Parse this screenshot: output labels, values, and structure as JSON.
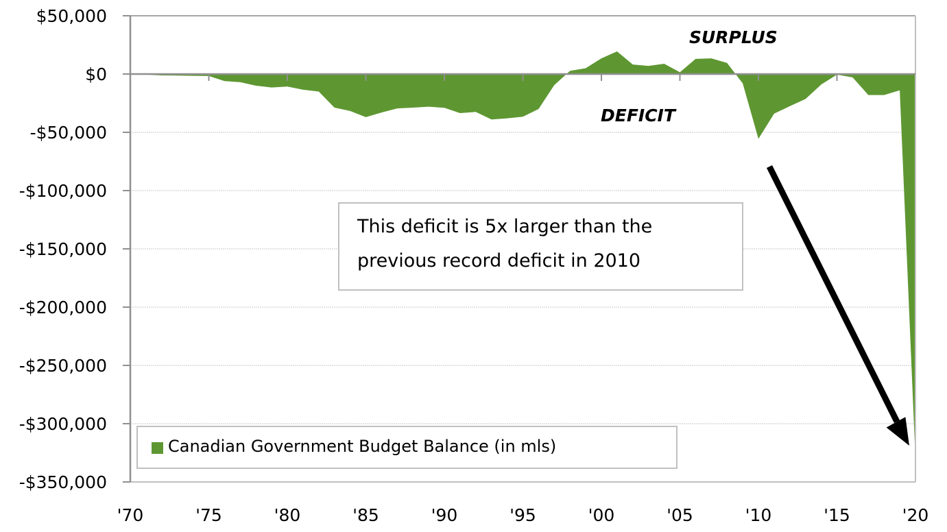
{
  "chart_data": {
    "type": "area",
    "title": "",
    "xlabel": "",
    "ylabel": "",
    "x": [
      1970,
      1971,
      1972,
      1973,
      1974,
      1975,
      1976,
      1977,
      1978,
      1979,
      1980,
      1981,
      1982,
      1983,
      1984,
      1985,
      1986,
      1987,
      1988,
      1989,
      1990,
      1991,
      1992,
      1993,
      1994,
      1995,
      1996,
      1997,
      1998,
      1999,
      2000,
      2001,
      2002,
      2003,
      2004,
      2005,
      2006,
      2007,
      2008,
      2009,
      2010,
      2011,
      2012,
      2013,
      2014,
      2015,
      2016,
      2017,
      2018,
      2019,
      2020
    ],
    "series": [
      {
        "name": "Canadian Government Budget Balance (in mls)",
        "color": "#5e9732",
        "values": [
          0,
          -500,
          -1200,
          -1300,
          -1500,
          -1700,
          -6000,
          -7000,
          -10000,
          -11500,
          -10700,
          -13500,
          -15000,
          -28800,
          -31700,
          -37000,
          -33000,
          -29500,
          -28800,
          -28000,
          -29000,
          -33500,
          -32500,
          -39000,
          -38000,
          -36600,
          -30000,
          -9500,
          2700,
          5000,
          13500,
          19400,
          8200,
          7000,
          8800,
          1500,
          13000,
          13500,
          9600,
          -8000,
          -55600,
          -34000,
          -27600,
          -21400,
          -9000,
          -500,
          -2900,
          -18000,
          -18000,
          -14000,
          -330600
        ]
      }
    ],
    "x_ticks": [
      {
        "value": 1970,
        "label": "'70"
      },
      {
        "value": 1975,
        "label": "'75"
      },
      {
        "value": 1980,
        "label": "'80"
      },
      {
        "value": 1985,
        "label": "'85"
      },
      {
        "value": 1990,
        "label": "'90"
      },
      {
        "value": 1995,
        "label": "'95"
      },
      {
        "value": 2000,
        "label": "'00"
      },
      {
        "value": 2005,
        "label": "'05"
      },
      {
        "value": 2010,
        "label": "'10"
      },
      {
        "value": 2015,
        "label": "'15"
      },
      {
        "value": 2020,
        "label": "'20"
      }
    ],
    "y_ticks": [
      {
        "value": 50000,
        "label": "$50,000"
      },
      {
        "value": 0,
        "label": "$0"
      },
      {
        "value": -50000,
        "label": "-$50,000"
      },
      {
        "value": -100000,
        "label": "-$100,000"
      },
      {
        "value": -150000,
        "label": "-$150,000"
      },
      {
        "value": -200000,
        "label": "-$200,000"
      },
      {
        "value": -250000,
        "label": "-$250,000"
      },
      {
        "value": -300000,
        "label": "-$300,000"
      },
      {
        "value": -350000,
        "label": "-$350,000"
      }
    ],
    "xlim": [
      1970,
      2020
    ],
    "ylim": [
      -350000,
      50000
    ],
    "grid": true,
    "legend": {
      "position": "bottom-left",
      "entries": [
        "Canadian Government Budget Balance (in mls)"
      ]
    },
    "annotations": {
      "surplus_label": "SURPLUS",
      "deficit_label": "DEFICIT",
      "callout_line1": "This deficit is 5x larger than the",
      "callout_line2": "previous record deficit in 2010",
      "arrow_points_to": "2020"
    }
  }
}
